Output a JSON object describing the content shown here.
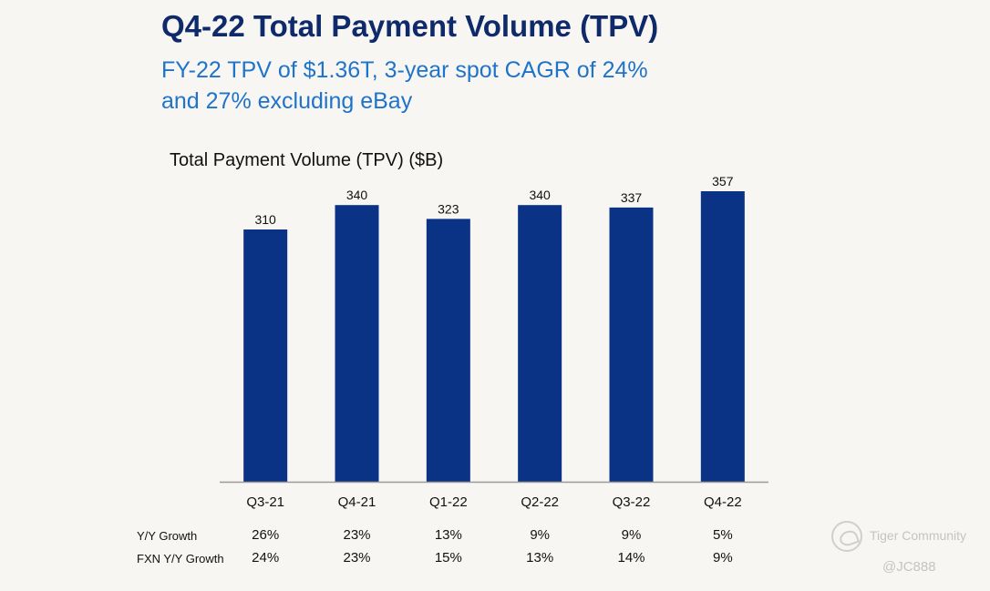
{
  "header": {
    "title": "Q4-22 Total Payment Volume (TPV)",
    "subtitle_line1": "FY-22 TPV of $1.36T, 3-year spot CAGR of 24%",
    "subtitle_line2": "and 27% excluding eBay"
  },
  "colors": {
    "bar": "#0a3285",
    "title": "#0f2a6b",
    "subtitle": "#1f73c8",
    "axis": "#9a9a9a",
    "background": "#f7f6f3"
  },
  "chart_data": {
    "type": "bar",
    "title": "Total Payment Volume (TPV) ($B)",
    "categories": [
      "Q3-21",
      "Q4-21",
      "Q1-22",
      "Q2-22",
      "Q3-22",
      "Q4-22"
    ],
    "values": [
      310,
      340,
      323,
      340,
      337,
      357
    ],
    "ylim": [
      0,
      357
    ],
    "grid": false,
    "legend": "none"
  },
  "growth_table": {
    "rows": [
      {
        "label": "Y/Y Growth",
        "values": [
          "26%",
          "23%",
          "13%",
          "9%",
          "9%",
          "5%"
        ]
      },
      {
        "label": "FXN Y/Y Growth",
        "values": [
          "24%",
          "23%",
          "15%",
          "13%",
          "14%",
          "9%"
        ]
      }
    ]
  },
  "watermark": {
    "brand": "Tiger Community",
    "handle": "@JC888",
    "icon": "tiger-logo-icon"
  }
}
